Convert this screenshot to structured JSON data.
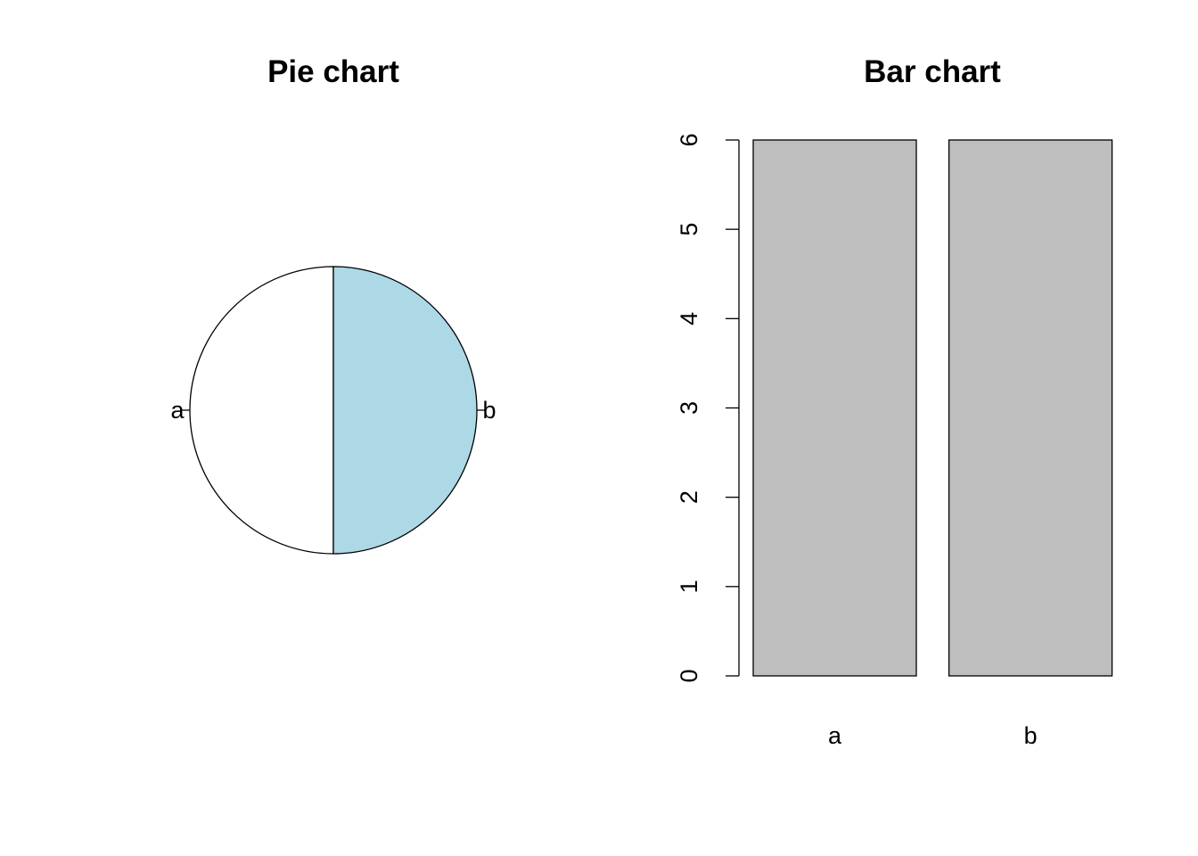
{
  "chart_data": [
    {
      "type": "pie",
      "title": "Pie chart",
      "slices": [
        {
          "label": "a",
          "value": 6,
          "color": "#ffffff"
        },
        {
          "label": "b",
          "value": 6,
          "color": "#add8e6"
        }
      ]
    },
    {
      "type": "bar",
      "title": "Bar chart",
      "categories": [
        "a",
        "b"
      ],
      "values": [
        6,
        6
      ],
      "bar_color": "#bebebe",
      "ylim": [
        0,
        6
      ],
      "yticks": [
        "0",
        "1",
        "2",
        "3",
        "4",
        "5",
        "6"
      ],
      "xlabel": "",
      "ylabel": ""
    }
  ]
}
